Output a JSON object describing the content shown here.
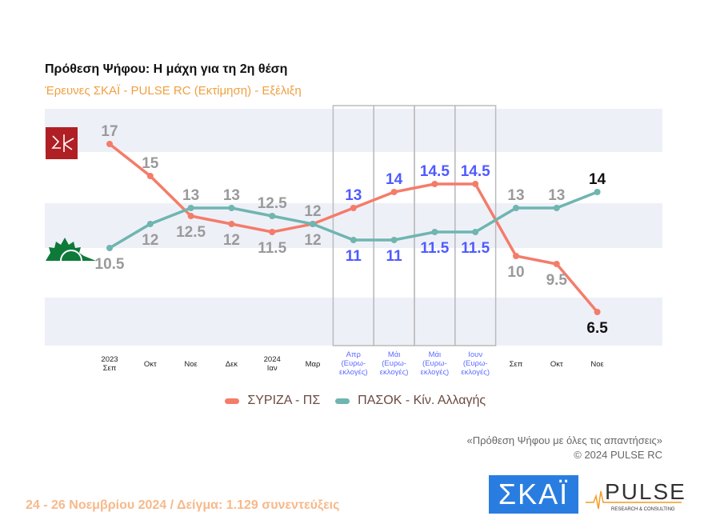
{
  "title": "Πρόθεση Ψήφου: Η μάχη για τη 2η θέση",
  "subtitle": "Έρευνες ΣΚΑΪ - PULSE RC   (Εκτίμηση) - Εξέλιξη",
  "chart_data": {
    "type": "line",
    "categories": [
      [
        "2023",
        "Σεπ"
      ],
      [
        "Οκτ"
      ],
      [
        "Νοε"
      ],
      [
        "Δεκ"
      ],
      [
        "2024",
        "Ιαν"
      ],
      [
        "Μαρ"
      ],
      [
        "Απρ",
        "(Ευρω-",
        "εκλογές)"
      ],
      [
        "Μάι",
        "(Ευρω-",
        "εκλογές)"
      ],
      [
        "Μάι",
        "(Ευρω-",
        "εκλογές)"
      ],
      [
        "Ιουν",
        "(Ευρω-",
        "εκλογές)"
      ],
      [
        "Σεπ"
      ],
      [
        "Οκτ"
      ],
      [
        "Νοε"
      ]
    ],
    "highlighted_categories": [
      6,
      7,
      8,
      9
    ],
    "series": [
      {
        "name": "ΣΥΡΙΖΑ - ΠΣ",
        "color": "#f47c6a",
        "values": [
          17,
          15,
          12.5,
          12,
          11.5,
          12,
          13,
          14,
          14.5,
          14.5,
          10,
          9.5,
          6.5
        ]
      },
      {
        "name": "ΠΑΣΟΚ - Κίν. Αλλαγής",
        "color": "#6fb5b0",
        "values": [
          10.5,
          12,
          13,
          13,
          12.5,
          12,
          11,
          11,
          11.5,
          11.5,
          13,
          13,
          14
        ]
      }
    ],
    "label_colors": {
      "normal": "#9a9a9a",
      "highlight": "#4f5bff",
      "last": "#111111"
    },
    "band_color": "#eef0f8",
    "legend": "bottom"
  },
  "note_line1": "«Πρόθεση Ψήφου με όλες τις απαντήσεις»",
  "note_line2": "©  2024  PULSE RC",
  "footer": "24 - 26 Νοεμβρίου 2024  /  Δείγμα:  1.129 συνεντεύξεις",
  "logo_skai": "ΣΚΑΪ",
  "logo_pulse": "PULSE",
  "logo_pulse_sub": "RESEARCH & CONSULTING"
}
